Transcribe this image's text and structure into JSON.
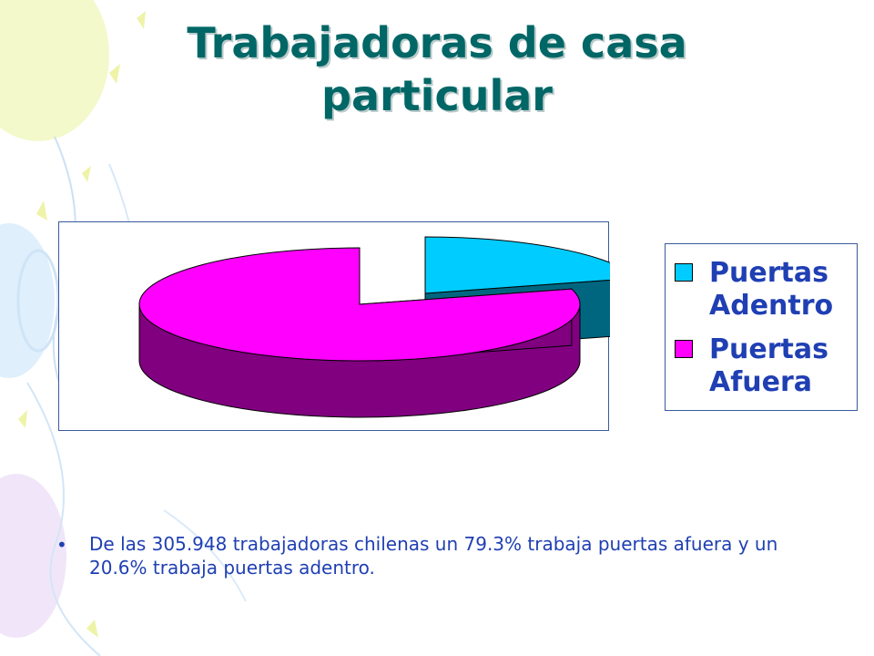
{
  "slide": {
    "title": "Trabajadoras de casa particular",
    "bullet": "De las 305.948 trabajadoras chilenas un 79.3%  trabaja puertas afuera y un 20.6% trabaja puertas adentro."
  },
  "chart_data": {
    "type": "pie",
    "style": "3d-exploded",
    "title": "",
    "categories": [
      "Puertas Adentro",
      "Puertas Afuera"
    ],
    "values": [
      20.6,
      79.3
    ],
    "colors": {
      "top": [
        "#00ccff",
        "#ff00ff"
      ],
      "side": [
        "#006680",
        "#800080"
      ]
    },
    "legend": "right"
  }
}
